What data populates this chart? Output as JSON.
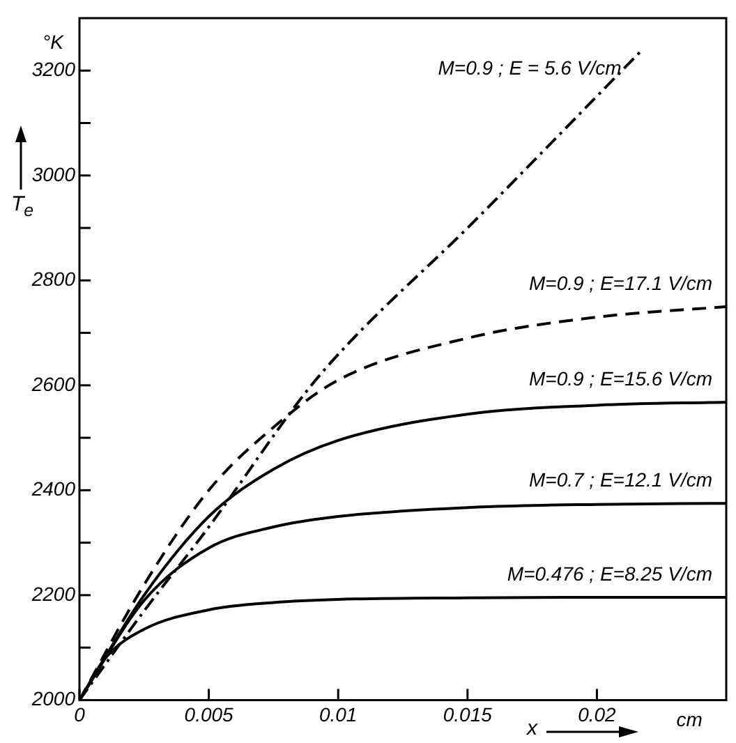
{
  "chart_data": {
    "type": "line",
    "xlabel": "x",
    "ylabel": "T$_{e}$",
    "xlim": [
      0,
      0.025
    ],
    "ylim": [
      2000,
      3300
    ],
    "xticks": [
      0,
      0.005,
      0.01,
      0.015,
      0.02
    ],
    "yticks": [
      2000,
      {
        "value": 2100,
        "label": null
      },
      2200,
      {
        "value": 2300,
        "label": null
      },
      2400,
      {
        "value": 2500,
        "label": null
      },
      2600,
      {
        "value": 2700,
        "label": null
      },
      2800,
      {
        "value": 2900,
        "label": null
      },
      3000,
      {
        "value": 3100,
        "label": null
      },
      3200
    ],
    "grid": false,
    "legend": false,
    "marker": "none",
    "annotations": [
      "°K",
      "cm"
    ],
    "series": [
      {
        "name": "M=0.9 ; E = 5.6 V/cm",
        "color": "#000000",
        "line_style": "dashdot",
        "x": [
          0,
          0.0025,
          0.005,
          0.0088,
          0.0104,
          0.015,
          0.0176,
          0.0217
        ],
        "values": [
          2000,
          2170,
          2330,
          2590,
          2680,
          2900,
          3030,
          3237
        ]
      },
      {
        "name": "M=0.9 ; E=17.1 V/cm",
        "color": "#000000",
        "line_style": "dashed",
        "x": [
          0,
          0.0025,
          0.005,
          0.0075,
          0.01,
          0.015,
          0.02,
          0.025
        ],
        "values": [
          2000,
          2220,
          2400,
          2520,
          2610,
          2690,
          2730,
          2750
        ]
      },
      {
        "name": "M=0.9 ; E=15.6 V/cm",
        "color": "#000000",
        "line_style": "solid",
        "x": [
          0,
          0.0025,
          0.005,
          0.0075,
          0.01,
          0.015,
          0.02,
          0.025
        ],
        "values": [
          2000,
          2200,
          2350,
          2440,
          2495,
          2545,
          2562,
          2568
        ]
      },
      {
        "name": "M=0.7 ; E=12.1 V/cm",
        "color": "#000000",
        "line_style": "solid",
        "x": [
          0,
          0.0025,
          0.005,
          0.0075,
          0.01,
          0.015,
          0.02,
          0.025
        ],
        "values": [
          2000,
          2190,
          2290,
          2330,
          2350,
          2367,
          2373,
          2375
        ]
      },
      {
        "name": "M=0.476 ; E=8.25 V/cm",
        "color": "#000000",
        "line_style": "solid",
        "x": [
          0,
          0.001,
          0.0025,
          0.005,
          0.0075,
          0.01,
          0.015,
          0.02,
          0.025
        ],
        "values": [
          2000,
          2080,
          2135,
          2172,
          2186,
          2192,
          2195,
          2196,
          2196
        ]
      }
    ]
  }
}
